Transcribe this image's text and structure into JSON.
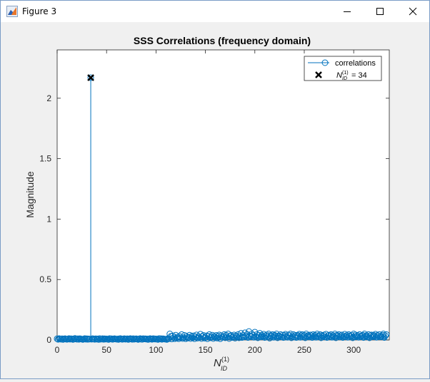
{
  "window": {
    "title": "Figure 3",
    "icons": {
      "app": "matlab-figure-icon",
      "minimize": "minimize-icon",
      "maximize": "maximize-icon",
      "close": "close-icon"
    }
  },
  "chart_data": {
    "type": "stem",
    "title": "SSS Correlations (frequency domain)",
    "xlabel": "N_ID^(1)",
    "ylabel": "Magnitude",
    "xlim": [
      0,
      336
    ],
    "ylim": [
      0,
      2.4
    ],
    "xticks": [
      0,
      50,
      100,
      150,
      200,
      250,
      300
    ],
    "yticks": [
      0,
      0.5,
      1,
      1.5,
      2
    ],
    "grid": false,
    "legend": {
      "position": "top-right",
      "entries": [
        {
          "label": "correlations",
          "marker": "circle-line"
        },
        {
          "label": "N_ID^(1) = 34",
          "marker": "x"
        }
      ]
    },
    "series": [
      {
        "name": "correlations",
        "color": "#0072bd",
        "marker": "o",
        "peak": {
          "x": 34,
          "y": 2.17
        },
        "values": [
          0.01,
          0.005,
          0.012,
          0.008,
          0.006,
          0.01,
          0.004,
          0.009,
          0.011,
          0.007,
          0.005,
          0.008,
          0.012,
          0.006,
          0.01,
          0.009,
          0.004,
          0.007,
          0.013,
          0.008,
          0.006,
          0.01,
          0.005,
          0.011,
          0.009,
          0.007,
          0.004,
          0.008,
          0.012,
          0.006,
          0.01,
          0.005,
          0.009,
          0.007,
          2.17,
          0.006,
          0.011,
          0.008,
          0.005,
          0.01,
          0.007,
          0.009,
          0.004,
          0.012,
          0.006,
          0.008,
          0.011,
          0.005,
          0.01,
          0.007,
          0.009,
          0.006,
          0.004,
          0.012,
          0.008,
          0.01,
          0.005,
          0.007,
          0.011,
          0.009,
          0.006,
          0.008,
          0.004,
          0.01,
          0.012,
          0.007,
          0.005,
          0.009,
          0.011,
          0.006,
          0.008,
          0.01,
          0.004,
          0.007,
          0.012,
          0.009,
          0.005,
          0.011,
          0.006,
          0.008,
          0.01,
          0.007,
          0.004,
          0.009,
          0.012,
          0.006,
          0.005,
          0.011,
          0.008,
          0.01,
          0.007,
          0.009,
          0.004,
          0.006,
          0.012,
          0.008,
          0.005,
          0.011,
          0.01,
          0.007,
          0.009,
          0.006,
          0.004,
          0.012,
          0.008,
          0.011,
          0.005,
          0.01,
          0.009,
          0.007,
          0.006,
          0.004,
          0.012,
          0.01,
          0.05,
          0.03,
          0.008,
          0.035,
          0.02,
          0.01,
          0.04,
          0.015,
          0.025,
          0.01,
          0.03,
          0.018,
          0.045,
          0.012,
          0.02,
          0.038,
          0.01,
          0.028,
          0.015,
          0.022,
          0.04,
          0.012,
          0.03,
          0.018,
          0.035,
          0.01,
          0.025,
          0.042,
          0.015,
          0.03,
          0.02,
          0.048,
          0.012,
          0.028,
          0.038,
          0.015,
          0.022,
          0.035,
          0.01,
          0.03,
          0.045,
          0.018,
          0.025,
          0.04,
          0.012,
          0.03,
          0.02,
          0.038,
          0.015,
          0.028,
          0.042,
          0.01,
          0.035,
          0.022,
          0.03,
          0.045,
          0.018,
          0.04,
          0.025,
          0.05,
          0.012,
          0.03,
          0.038,
          0.02,
          0.028,
          0.042,
          0.015,
          0.035,
          0.025,
          0.045,
          0.018,
          0.03,
          0.055,
          0.02,
          0.038,
          0.025,
          0.06,
          0.03,
          0.045,
          0.02,
          0.07,
          0.035,
          0.028,
          0.05,
          0.04,
          0.022,
          0.065,
          0.03,
          0.045,
          0.018,
          0.038,
          0.055,
          0.025,
          0.04,
          0.03,
          0.048,
          0.02,
          0.035,
          0.042,
          0.028,
          0.05,
          0.015,
          0.038,
          0.03,
          0.045,
          0.022,
          0.04,
          0.032,
          0.05,
          0.018,
          0.035,
          0.028,
          0.045,
          0.025,
          0.04,
          0.02,
          0.038,
          0.048,
          0.03,
          0.022,
          0.042,
          0.035,
          0.05,
          0.018,
          0.03,
          0.045,
          0.025,
          0.038,
          0.02,
          0.04,
          0.032,
          0.048,
          0.022,
          0.035,
          0.045,
          0.028,
          0.04,
          0.018,
          0.05,
          0.03,
          0.038,
          0.025,
          0.042,
          0.035,
          0.02,
          0.045,
          0.03,
          0.04,
          0.022,
          0.05,
          0.028,
          0.035,
          0.045,
          0.018,
          0.038,
          0.03,
          0.042,
          0.025,
          0.048,
          0.02,
          0.035,
          0.04,
          0.03,
          0.045,
          0.022,
          0.038,
          0.028,
          0.05,
          0.018,
          0.04,
          0.032,
          0.045,
          0.025,
          0.035,
          0.042,
          0.02,
          0.03,
          0.048,
          0.028,
          0.038,
          0.022,
          0.045,
          0.035,
          0.03,
          0.04,
          0.018,
          0.05,
          0.025,
          0.042,
          0.03,
          0.038,
          0.022,
          0.045,
          0.028,
          0.035,
          0.04,
          0.02,
          0.05,
          0.03,
          0.038,
          0.025,
          0.045,
          0.018,
          0.035,
          0.042,
          0.028,
          0.04,
          0.03,
          0.048,
          0.022,
          0.038,
          0.035,
          0.045,
          0.025,
          0.03,
          0.04,
          0.05,
          0.02,
          0.035,
          0.045
        ]
      }
    ]
  }
}
